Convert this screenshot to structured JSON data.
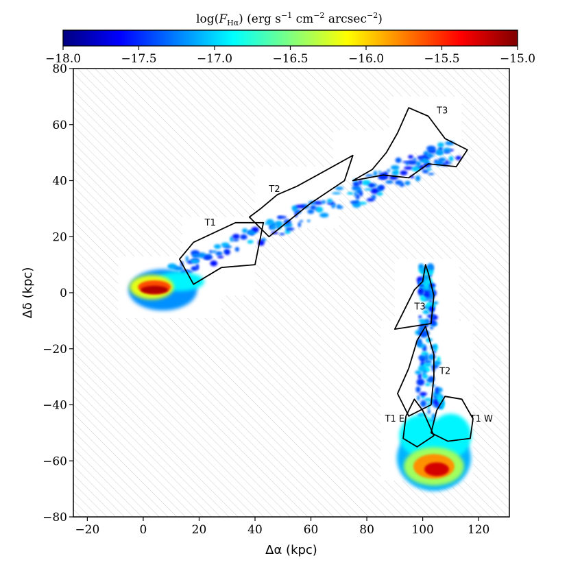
{
  "chart_data": {
    "type": "heatmap",
    "title": "",
    "xlabel": "Δα (kpc)",
    "ylabel": "Δδ (kpc)",
    "xlim": [
      -25,
      131
    ],
    "ylim": [
      -80,
      80
    ],
    "xticks": [
      -20,
      0,
      20,
      40,
      60,
      80,
      100,
      120
    ],
    "yticks": [
      -80,
      -60,
      -40,
      -20,
      0,
      20,
      40,
      60,
      80
    ],
    "x_tick_labels": [
      "−20",
      "0",
      "20",
      "40",
      "60",
      "80",
      "100",
      "120"
    ],
    "y_tick_labels": [
      "−80",
      "−60",
      "−40",
      "−20",
      "0",
      "20",
      "40",
      "60",
      "80"
    ],
    "background": "hatched (no data)",
    "colorbar": {
      "label": "log(F_Hα) (erg s⁻¹ cm⁻² arcsec⁻²)",
      "label_parts": {
        "pre": "log(",
        "var": "F",
        "sub": "Hα",
        "post": ") (erg s",
        "e1": "−1",
        "mid": " cm",
        "e2": "−2",
        "mid2": " arcsec",
        "e3": "−2",
        "end": ")"
      },
      "range": [
        -18.0,
        -15.0
      ],
      "ticks": [
        -18.0,
        -17.5,
        -17.0,
        -16.5,
        -16.0,
        -15.5,
        -15.0
      ],
      "tick_labels": [
        "−18.0",
        "−17.5",
        "−17.0",
        "−16.5",
        "−16.0",
        "−15.5",
        "−15.0"
      ],
      "colormap": "jet",
      "colormap_stops": [
        "#00007f",
        "#0000ff",
        "#007fff",
        "#00ffff",
        "#7fff7f",
        "#ffff00",
        "#ff7f00",
        "#ff0000",
        "#7f0000"
      ],
      "placement": "top"
    },
    "regions": [
      {
        "label": "T1",
        "label_at": [
          24,
          24
        ],
        "outline": [
          [
            13,
            12
          ],
          [
            18,
            18
          ],
          [
            33,
            25
          ],
          [
            43,
            25
          ],
          [
            40,
            10
          ],
          [
            28,
            9
          ],
          [
            18,
            3
          ]
        ]
      },
      {
        "label": "T2",
        "label_at": [
          47,
          36
        ],
        "outline": [
          [
            38,
            27
          ],
          [
            42,
            30
          ],
          [
            48,
            35
          ],
          [
            55,
            38
          ],
          [
            66,
            44
          ],
          [
            75,
            49
          ],
          [
            72,
            40
          ],
          [
            60,
            32
          ],
          [
            50,
            24
          ],
          [
            45,
            20
          ]
        ]
      },
      {
        "label": "T3",
        "label_at": [
          107,
          64
        ],
        "outline": [
          [
            75,
            40
          ],
          [
            82,
            44
          ],
          [
            87,
            50
          ],
          [
            91,
            57
          ],
          [
            95,
            66
          ],
          [
            102,
            63
          ],
          [
            108,
            55
          ],
          [
            116,
            51
          ],
          [
            112,
            45
          ],
          [
            102,
            46
          ],
          [
            95,
            41
          ],
          [
            86,
            42
          ]
        ]
      },
      {
        "label": "T3",
        "label_at": [
          99,
          -6
        ],
        "outline": [
          [
            90,
            -13
          ],
          [
            103,
            -11
          ],
          [
            104,
            -1
          ],
          [
            102,
            7
          ],
          [
            101,
            10
          ],
          [
            100,
            4
          ],
          [
            97,
            1
          ],
          [
            95,
            -3
          ],
          [
            92,
            -9
          ]
        ]
      },
      {
        "label": "T2",
        "label_at": [
          108,
          -29
        ],
        "outline": [
          [
            91,
            -36
          ],
          [
            95,
            -44
          ],
          [
            103,
            -40
          ],
          [
            104,
            -30
          ],
          [
            104,
            -22
          ],
          [
            101,
            -12
          ],
          [
            98,
            -17
          ],
          [
            95,
            -27
          ]
        ]
      },
      {
        "label": "T1 E",
        "label_at": [
          90,
          -46
        ],
        "outline": [
          [
            93,
            -52
          ],
          [
            98,
            -55
          ],
          [
            104,
            -51
          ],
          [
            100,
            -42
          ],
          [
            97,
            -38
          ],
          [
            94,
            -44
          ]
        ]
      },
      {
        "label": "T1 W",
        "label_at": [
          121,
          -46
        ],
        "outline": [
          [
            103,
            -50
          ],
          [
            109,
            -53
          ],
          [
            117,
            -52
          ],
          [
            118,
            -45
          ],
          [
            114,
            -38
          ],
          [
            108,
            -37
          ],
          [
            105,
            -42
          ]
        ]
      }
    ],
    "emission_features": [
      {
        "name": "galaxy-core",
        "center": [
          3,
          2
        ],
        "extent": [
          9,
          5
        ],
        "peak": -15.0
      },
      {
        "name": "northern-tail",
        "from": [
          12,
          8
        ],
        "to": [
          113,
          52
        ],
        "peak": -17.2
      },
      {
        "name": "southern-head",
        "center": [
          104,
          -61
        ],
        "extent": [
          12,
          8
        ],
        "peak": -15.1
      },
      {
        "name": "southern-tail",
        "from": [
          103,
          -45
        ],
        "to": [
          101,
          10
        ],
        "peak": -17.3
      }
    ]
  }
}
